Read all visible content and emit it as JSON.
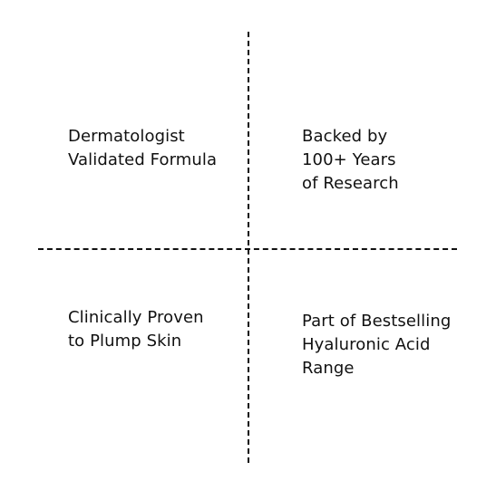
{
  "features": [
    {
      "lines": [
        "Dermatologist",
        "Validated Formula"
      ]
    },
    {
      "lines": [
        "Backed by",
        "100+ Years",
        "of Research"
      ]
    },
    {
      "lines": [
        "Clinically Proven",
        "to Plump Skin"
      ]
    },
    {
      "lines": [
        "Part of Bestselling",
        "Hyaluronic Acid",
        "Range"
      ]
    }
  ]
}
